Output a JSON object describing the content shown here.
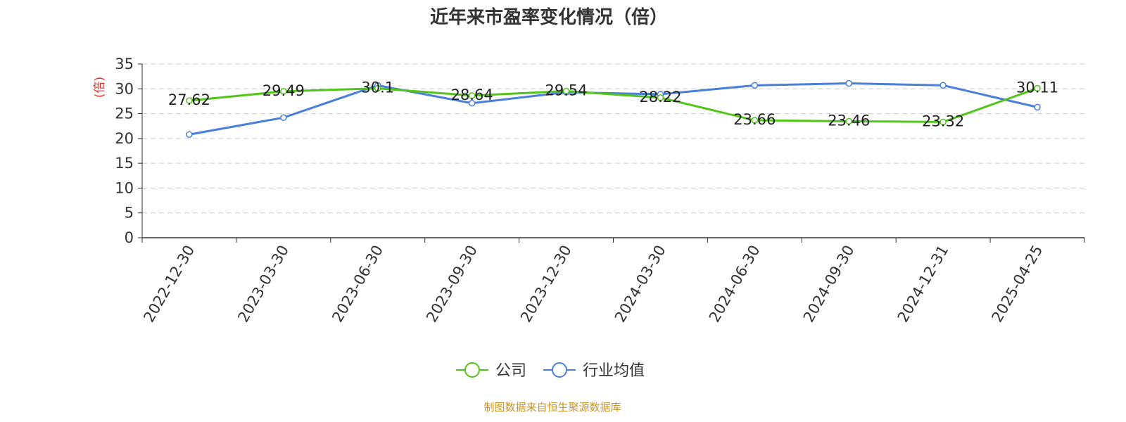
{
  "chart_data": {
    "type": "line",
    "title": "近年来市盈率变化情况（倍）",
    "y_unit": "(倍)",
    "categories": [
      "2022-12-30",
      "2023-03-30",
      "2023-06-30",
      "2023-09-30",
      "2023-12-30",
      "2024-03-30",
      "2024-06-30",
      "2024-09-30",
      "2024-12-31",
      "2025-04-25"
    ],
    "ylim": [
      0,
      35
    ],
    "yticks": [
      0,
      5,
      10,
      15,
      20,
      25,
      30,
      35
    ],
    "grid": true,
    "legend_position": "bottom",
    "series": [
      {
        "name": "公司",
        "color": "#52c41a",
        "values": [
          27.62,
          29.49,
          30.1,
          28.64,
          29.54,
          28.22,
          23.66,
          23.46,
          23.32,
          30.11
        ],
        "labels": [
          "27.62",
          "29.49",
          "30.1",
          "28.64",
          "29.54",
          "28.22",
          "23.66",
          "23.46",
          "23.32",
          "30.11"
        ]
      },
      {
        "name": "行业均值",
        "color": "#4a7fdc",
        "values": [
          20.8,
          24.2,
          30.7,
          27.1,
          29.3,
          28.9,
          30.7,
          31.1,
          30.7,
          26.3
        ]
      }
    ],
    "source": "制图数据来自恒生聚源数据库"
  },
  "colors": {
    "unit": "#e03030",
    "source": "#c8952a",
    "grid": "#cccccc",
    "axis": "#333333"
  }
}
